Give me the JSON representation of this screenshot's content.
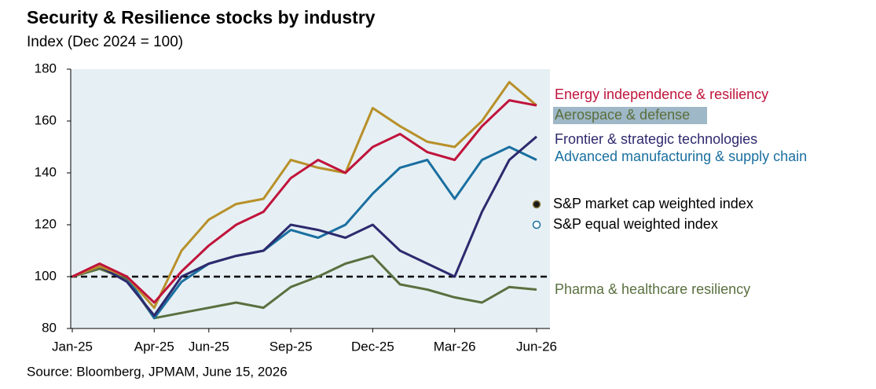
{
  "chart_data": {
    "type": "line",
    "title": "Security & Resilience stocks by industry",
    "subtitle": "Index (Dec 2024 = 100)",
    "source": "Source: Bloomberg, JPMAM, June 15, 2026",
    "x": [
      "Jan-25",
      "Feb-25",
      "Mar-25",
      "Apr-25",
      "May-25",
      "Jun-25",
      "Jul-25",
      "Aug-25",
      "Sep-25",
      "Oct-25",
      "Nov-25",
      "Dec-25",
      "Jan-26",
      "Feb-26",
      "Mar-26",
      "Apr-26",
      "May-26",
      "Jun-26"
    ],
    "xticks": [
      "Jan-25",
      "Apr-25",
      "Jun-25",
      "Sep-25",
      "Dec-25",
      "Mar-26",
      "Jun-26"
    ],
    "ylim": [
      80,
      180
    ],
    "yticks": [
      80,
      100,
      120,
      140,
      160,
      180
    ],
    "reference_line": 100,
    "background": "#e6f0f4",
    "series": [
      {
        "name": "Energy independence & resiliency",
        "color": "#c0143c",
        "values": [
          100,
          105,
          100,
          90,
          102,
          112,
          120,
          125,
          138,
          145,
          140,
          150,
          155,
          148,
          145,
          158,
          168,
          166
        ]
      },
      {
        "name": "Aerospace & defense",
        "color": "#b8902a",
        "highlight": "#9fb8c8",
        "label_color": "#5a6e3a",
        "values": [
          100,
          104,
          100,
          88,
          110,
          122,
          128,
          130,
          145,
          142,
          140,
          165,
          158,
          152,
          150,
          160,
          175,
          166
        ]
      },
      {
        "name": "Frontier & strategic technologies",
        "color": "#2d2a6e",
        "values": [
          100,
          104,
          98,
          85,
          100,
          105,
          108,
          110,
          120,
          118,
          115,
          120,
          110,
          105,
          100,
          125,
          145,
          154
        ]
      },
      {
        "name": "Advanced manufacturing & supply chain",
        "color": "#1a6fa0",
        "values": [
          100,
          104,
          100,
          84,
          98,
          105,
          108,
          110,
          118,
          115,
          120,
          132,
          142,
          145,
          130,
          145,
          150,
          145
        ]
      },
      {
        "name": "Pharma & healthcare resiliency",
        "color": "#5a7040",
        "values": [
          100,
          103,
          99,
          84,
          86,
          88,
          90,
          88,
          96,
          100,
          105,
          108,
          97,
          95,
          92,
          90,
          96,
          95
        ]
      }
    ],
    "reference_legend": [
      {
        "label": "S&P market cap weighted index",
        "marker": "filled"
      },
      {
        "label": "S&P equal weighted index",
        "marker": "open"
      }
    ]
  }
}
